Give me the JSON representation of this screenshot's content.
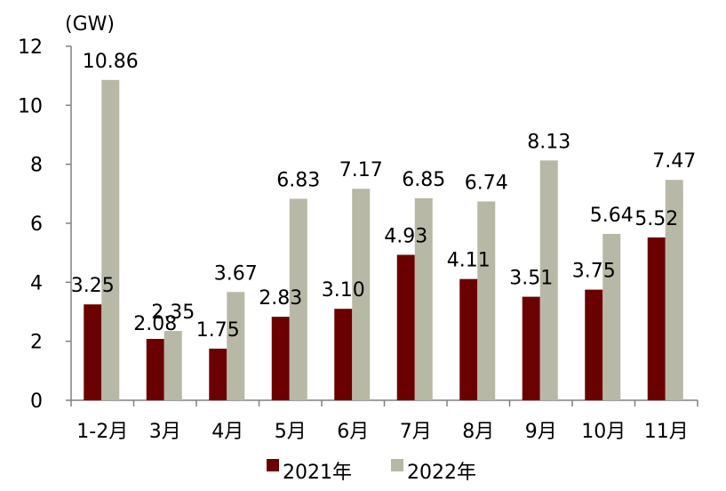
{
  "chart_data": {
    "type": "bar",
    "unit": "(GW)",
    "categories": [
      "1-2月",
      "3月",
      "4月",
      "5月",
      "6月",
      "7月",
      "8月",
      "9月",
      "10月",
      "11月"
    ],
    "series": [
      {
        "name": "2021年",
        "color": "#6b0000",
        "values": [
          3.25,
          2.08,
          1.75,
          2.83,
          3.1,
          4.93,
          4.11,
          3.51,
          3.75,
          5.52
        ],
        "labels": [
          "3.25",
          "2.08",
          "1.75",
          "2.83",
          "3.10",
          "4.93",
          "4.11",
          "3.51",
          "3.75",
          "5.52"
        ]
      },
      {
        "name": "2022年",
        "color": "#b8b8a6",
        "values": [
          10.86,
          2.35,
          3.67,
          6.83,
          7.17,
          6.85,
          6.74,
          8.13,
          5.64,
          7.47
        ],
        "labels": [
          "10.86",
          "2.35",
          "3.67",
          "6.83",
          "7.17",
          "6.85",
          "6.74",
          "8.13",
          "5.64",
          "7.47"
        ]
      }
    ],
    "yticks": [
      "0",
      "2",
      "4",
      "6",
      "8",
      "10",
      "12"
    ],
    "ylim": [
      0,
      12
    ],
    "grid": false,
    "legend_position": "bottom-center"
  }
}
